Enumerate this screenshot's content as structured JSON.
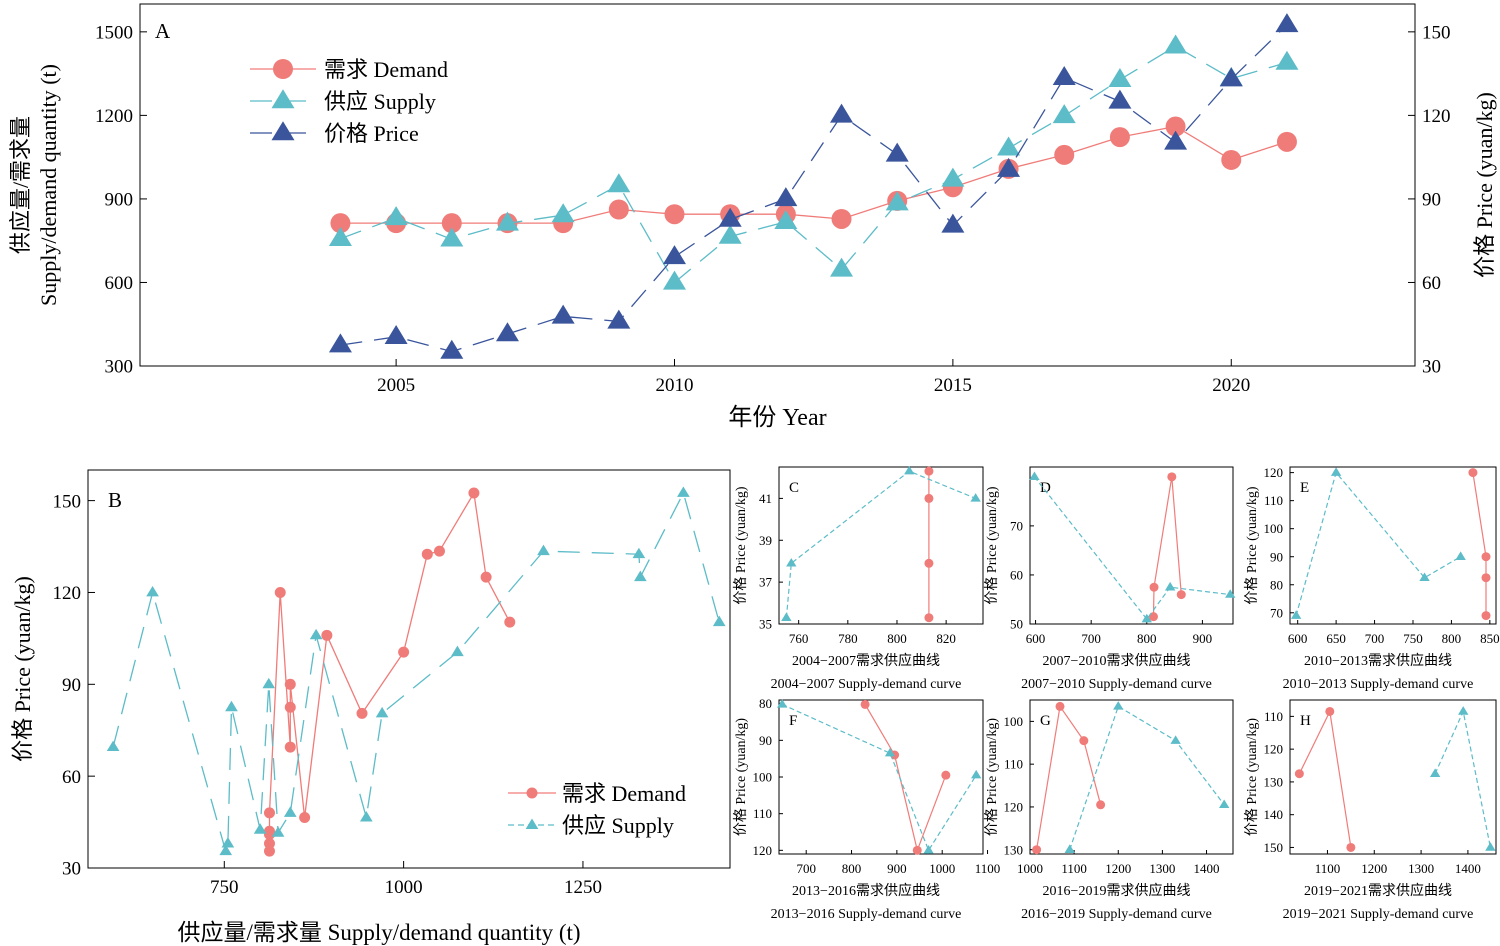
{
  "colors": {
    "demand": "#F07C79",
    "supply": "#5CBCC8",
    "price": "#3A559C",
    "axis": "#000000"
  },
  "chart_data": [
    {
      "id": "A",
      "type": "line",
      "panel_label": "A",
      "xlabel": "年份 Year",
      "ylabel_left_line1": "供应量/需求量",
      "ylabel_left_line2": "Supply/demand quantity (t)",
      "ylabel_right": "价格 Price (yuan/kg)",
      "x": [
        2004,
        2005,
        2006,
        2007,
        2008,
        2009,
        2010,
        2011,
        2012,
        2013,
        2014,
        2015,
        2016,
        2017,
        2018,
        2019,
        2020,
        2021
      ],
      "xlim": [
        2000.4,
        2023.3
      ],
      "ylim_left": [
        300,
        1600
      ],
      "ylim_right": [
        30,
        160
      ],
      "xticks": [
        2005,
        2010,
        2015,
        2020
      ],
      "xtick_labels": [
        "2005",
        "2010",
        "2015",
        "2020"
      ],
      "yticks_left": [
        300,
        600,
        900,
        1200,
        1500
      ],
      "ytick_labels_left": [
        "300",
        "600",
        "900",
        "1200",
        "1500"
      ],
      "yticks_right": [
        30,
        60,
        90,
        120,
        150
      ],
      "ytick_labels_right": [
        "30",
        "60",
        "90",
        "120",
        "150"
      ],
      "legend_position": "top-left",
      "series": [
        {
          "name": "需求 Demand",
          "axis": "left",
          "marker": "circle",
          "style": "solid",
          "values": [
            813,
            813,
            813,
            813,
            813,
            862,
            845,
            845,
            845,
            828,
            893,
            942,
            1008,
            1058,
            1122,
            1160,
            1040,
            1105
          ]
        },
        {
          "name": "供应 Supply",
          "axis": "left",
          "marker": "triangle",
          "style": "dashed",
          "values": [
            757,
            832,
            755,
            812,
            842,
            950,
            600,
            765,
            818,
            647,
            885,
            970,
            1082,
            1198,
            1328,
            1448,
            1332,
            1390
          ]
        },
        {
          "name": "价格 Price",
          "axis": "right",
          "marker": "triangle",
          "style": "dashed",
          "values": [
            37.5,
            40.5,
            35.2,
            41.5,
            47.8,
            46,
            69.2,
            82.6,
            90,
            120,
            106,
            80.5,
            100.5,
            133.5,
            125,
            110.3,
            133,
            152.5
          ]
        }
      ]
    },
    {
      "id": "B",
      "type": "line",
      "panel_label": "B",
      "xlabel": "供应量/需求量 Supply/demand quantity (t)",
      "ylabel": "价格 Price (yuan/kg)",
      "xlim": [
        560,
        1455
      ],
      "ylim": [
        30,
        160
      ],
      "xticks": [
        750,
        1000,
        1250
      ],
      "xtick_labels": [
        "750",
        "1000",
        "1250"
      ],
      "yticks": [
        30,
        60,
        90,
        120,
        150
      ],
      "ytick_labels": [
        "30",
        "60",
        "90",
        "120",
        "150"
      ],
      "legend_position": "bottom-right",
      "series": [
        {
          "name": "需求 Demand",
          "marker": "circle",
          "style": "solid",
          "points": [
            [
              813,
              35.5
            ],
            [
              813,
              38
            ],
            [
              813,
              41
            ],
            [
              813,
              42
            ],
            [
              813,
              48
            ],
            [
              828,
              120
            ],
            [
              842,
              69.5
            ],
            [
              842,
              82.5
            ],
            [
              842,
              90
            ],
            [
              862,
              46.5
            ],
            [
              893,
              106
            ],
            [
              942,
              80.5
            ],
            [
              1000,
              100.5
            ],
            [
              1033,
              132.5
            ],
            [
              1050,
              133.5
            ],
            [
              1098,
              152.5
            ],
            [
              1115,
              125
            ],
            [
              1148,
              110.3
            ]
          ]
        },
        {
          "name": "供应 Supply",
          "marker": "triangle",
          "style": "dashed",
          "points": [
            [
              595,
              69.5
            ],
            [
              650,
              120
            ],
            [
              752,
              35.5
            ],
            [
              755,
              38
            ],
            [
              760,
              82.5
            ],
            [
              800,
              42.5
            ],
            [
              812,
              90
            ],
            [
              825,
              41.5
            ],
            [
              842,
              48
            ],
            [
              878,
              106
            ],
            [
              948,
              46.5
            ],
            [
              970,
              80.5
            ],
            [
              1075,
              100.5
            ],
            [
              1195,
              133.5
            ],
            [
              1328,
              132.5
            ],
            [
              1330,
              125
            ],
            [
              1390,
              152.5
            ],
            [
              1440,
              110.3
            ]
          ]
        }
      ]
    },
    {
      "id": "C",
      "type": "line",
      "panel_label": "C",
      "xlabel_line1": "2004−2007需求供应曲线",
      "xlabel_line2": "2004−2007 Supply-demand curve",
      "ylabel": "价格 Price (yuan/kg)",
      "xlim": [
        752,
        835
      ],
      "ylim": [
        35,
        42.5
      ],
      "y_inverted": false,
      "xticks": [
        760,
        780,
        800,
        820
      ],
      "xtick_labels": [
        "760",
        "780",
        "800",
        "820"
      ],
      "yticks": [
        35,
        37,
        39,
        41
      ],
      "ytick_labels": [
        "35",
        "37",
        "39",
        "41"
      ],
      "series": [
        {
          "name": "需求 Demand",
          "marker": "circle",
          "style": "solid",
          "points": [
            [
              813,
              42.3
            ],
            [
              813,
              41
            ],
            [
              813,
              37.9
            ],
            [
              813,
              35.3
            ]
          ]
        },
        {
          "name": "供应 Supply",
          "marker": "triangle",
          "style": "dashed",
          "points": [
            [
              755,
              35.3
            ],
            [
              757,
              37.9
            ],
            [
              805,
              42.3
            ],
            [
              832,
              41
            ]
          ]
        }
      ]
    },
    {
      "id": "D",
      "type": "line",
      "panel_label": "D",
      "xlabel_line1": "2007−2010需求供应曲线",
      "xlabel_line2": "2007−2010 Supply-demand curve",
      "ylabel": "价格 Price (yuan/kg)",
      "xlim": [
        590,
        955
      ],
      "ylim": [
        50,
        82
      ],
      "y_inverted": false,
      "xticks": [
        600,
        700,
        800,
        900
      ],
      "xtick_labels": [
        "600",
        "700",
        "800",
        "900"
      ],
      "yticks": [
        50,
        60,
        70
      ],
      "ytick_labels": [
        "50",
        "60",
        "70"
      ],
      "series": [
        {
          "name": "需求 Demand",
          "marker": "circle",
          "style": "solid",
          "points": [
            [
              812,
              51.5
            ],
            [
              813,
              57.5
            ],
            [
              845,
              80
            ],
            [
              862,
              56
            ]
          ]
        },
        {
          "name": "供应 Supply",
          "marker": "triangle",
          "style": "dashed",
          "points": [
            [
              598,
              80
            ],
            [
              800,
              51
            ],
            [
              842,
              57.5
            ],
            [
              950,
              56
            ]
          ]
        }
      ]
    },
    {
      "id": "E",
      "type": "line",
      "panel_label": "E",
      "xlabel_line1": "2010−2013需求供应曲线",
      "xlabel_line2": "2010−2013 Supply-demand curve",
      "ylabel": "价格 Price (yuan/kg)",
      "xlim": [
        590,
        858
      ],
      "ylim": [
        66,
        122
      ],
      "y_inverted": false,
      "xticks": [
        600,
        650,
        700,
        750,
        800,
        850
      ],
      "xtick_labels": [
        "600",
        "650",
        "700",
        "750",
        "800",
        "850"
      ],
      "yticks": [
        70,
        80,
        90,
        100,
        110,
        120
      ],
      "ytick_labels": [
        "70",
        "80",
        "90",
        "100",
        "110",
        "120"
      ],
      "series": [
        {
          "name": "需求 Demand",
          "marker": "circle",
          "style": "solid",
          "points": [
            [
              828,
              120
            ],
            [
              845,
              90
            ],
            [
              845,
              82.5
            ],
            [
              845,
              69
            ]
          ]
        },
        {
          "name": "供应 Supply",
          "marker": "triangle",
          "style": "dashed",
          "points": [
            [
              598,
              69
            ],
            [
              650,
              120
            ],
            [
              765,
              82.5
            ],
            [
              812,
              90
            ]
          ]
        }
      ]
    },
    {
      "id": "F",
      "type": "line",
      "panel_label": "F",
      "xlabel_line1": "2013−2016需求供应曲线",
      "xlabel_line2": "2013−2016 Supply-demand curve",
      "ylabel": "价格 Price (yuan/kg)",
      "xlim": [
        640,
        1090
      ],
      "ylim": [
        79,
        121
      ],
      "y_inverted": true,
      "xticks": [
        700,
        800,
        900,
        1000,
        1100
      ],
      "xtick_labels": [
        "700",
        "800",
        "900",
        "1000",
        "1100"
      ],
      "yticks": [
        80,
        90,
        100,
        110,
        120
      ],
      "ytick_labels": [
        "80",
        "90",
        "100",
        "110",
        "120"
      ],
      "series": [
        {
          "name": "需求 Demand",
          "marker": "circle",
          "style": "solid",
          "points": [
            [
              830,
              80.2
            ],
            [
              895,
              94
            ],
            [
              945,
              120
            ],
            [
              1008,
              99.5
            ]
          ]
        },
        {
          "name": "供应 Supply",
          "marker": "triangle",
          "style": "dashed",
          "points": [
            [
              647,
              80.2
            ],
            [
              885,
              93.5
            ],
            [
              970,
              120
            ],
            [
              1075,
              99.5
            ]
          ]
        }
      ]
    },
    {
      "id": "G",
      "type": "line",
      "panel_label": "G",
      "xlabel_line1": "2016−2019需求供应曲线",
      "xlabel_line2": "2016−2019 Supply-demand curve",
      "ylabel": "价格 Price (yuan/kg)",
      "xlim": [
        1000,
        1460
      ],
      "ylim": [
        95,
        131
      ],
      "y_inverted": true,
      "xticks": [
        1000,
        1100,
        1200,
        1300,
        1400
      ],
      "xtick_labels": [
        "1000",
        "1100",
        "1200",
        "1300",
        "1400"
      ],
      "yticks": [
        100,
        110,
        120,
        130
      ],
      "ytick_labels": [
        "100",
        "110",
        "120",
        "130"
      ],
      "series": [
        {
          "name": "需求 Demand",
          "marker": "circle",
          "style": "solid",
          "points": [
            [
              1015,
              130
            ],
            [
              1068,
              96.5
            ],
            [
              1122,
              104.5
            ],
            [
              1160,
              119.5
            ]
          ]
        },
        {
          "name": "供应 Supply",
          "marker": "triangle",
          "style": "dashed",
          "points": [
            [
              1090,
              130
            ],
            [
              1200,
              96.5
            ],
            [
              1330,
              104.5
            ],
            [
              1440,
              119.5
            ]
          ]
        }
      ]
    },
    {
      "id": "H",
      "type": "line",
      "panel_label": "H",
      "xlabel_line1": "2019−2021需求供应曲线",
      "xlabel_line2": "2019−2021 Supply-demand curve",
      "ylabel": "价格 Price (yuan/kg)",
      "xlim": [
        1020,
        1460
      ],
      "ylim": [
        105,
        152
      ],
      "y_inverted": true,
      "xticks": [
        1100,
        1200,
        1300,
        1400
      ],
      "xtick_labels": [
        "1100",
        "1200",
        "1300",
        "1400"
      ],
      "yticks": [
        110,
        120,
        130,
        140,
        150
      ],
      "ytick_labels": [
        "110",
        "120",
        "130",
        "140",
        "150"
      ],
      "series": [
        {
          "name": "需求 Demand",
          "marker": "circle",
          "style": "solid",
          "points": [
            [
              1040,
              127.5
            ],
            [
              1105,
              108.5
            ],
            [
              1150,
              150
            ]
          ]
        },
        {
          "name": "供应 Supply",
          "marker": "triangle",
          "style": "dashed",
          "points": [
            [
              1330,
              127.5
            ],
            [
              1390,
              108.5
            ],
            [
              1448,
              150
            ]
          ]
        }
      ]
    }
  ]
}
